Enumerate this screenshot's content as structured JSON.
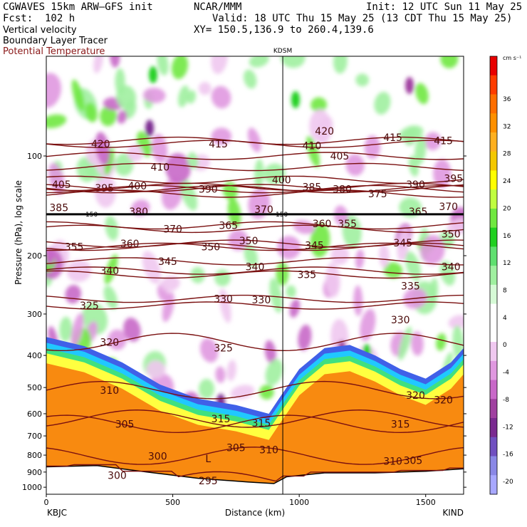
{
  "header": {
    "left_line1": "CGWAVES 15km ARW—GFS init",
    "left_line2": "Fcst:  102 h",
    "left_line3": "Vertical velocity",
    "left_line4": "Boundary Layer Tracer",
    "left_line5": "Potential Temperature",
    "center_line1": "NCAR/MMM",
    "init_text": "Init: 12 UTC Sun 11 May 25",
    "valid_text": "Valid: 18 UTC Thu 15 May 25 (13 CDT Thu 15 May 25)",
    "xy_text": "XY= 150.5,136.9 to 260.4,139.6",
    "potential_temp_color": "#8b1a1a"
  },
  "chart_data": {
    "type": "heatmap",
    "xlabel": "Distance (km)",
    "ylabel": "Pressure (hPa), log scale",
    "xlim": [
      0,
      1650
    ],
    "ylim": [
      1050,
      50
    ],
    "x_ticks": [
      0,
      500,
      1000,
      1500
    ],
    "x_tick_labels": [
      "0",
      "500",
      "1000",
      "1500"
    ],
    "y_ticks": [
      100,
      200,
      300,
      400,
      500,
      600,
      700,
      800,
      900,
      1000
    ],
    "y_tick_labels": [
      "100",
      "200",
      "300",
      "400",
      "500",
      "600",
      "700",
      "800",
      "900",
      "1000"
    ],
    "y_scale": "log",
    "start_station": "KBJC",
    "end_station": "KIND",
    "mid_station": "KDSM",
    "mid_station_km": 935,
    "tropopause_pressure": 150,
    "tropopause_labels": [
      "150",
      "150"
    ],
    "colorbar": {
      "units": "cm s⁻¹",
      "levels": [
        36,
        32,
        28,
        24,
        20,
        16,
        12,
        8,
        4,
        0,
        -4,
        -8,
        -12,
        -16,
        -20
      ],
      "labels": [
        "36",
        "32",
        "28",
        "24",
        "20",
        "16",
        "12",
        "8",
        "4",
        "0",
        "-4",
        "-8",
        "-12",
        "-16",
        "-20"
      ],
      "colors": [
        "#e80000",
        "#ff3c00",
        "#ff6e00",
        "#ff9000",
        "#ffb020",
        "#f4c800",
        "#ffff00",
        "#c0ff40",
        "#70e840",
        "#20d020",
        "#60e070",
        "#a0f0a0",
        "#d6fad6",
        "#ffffff",
        "#ffffff",
        "#f0c8f0",
        "#e098e0",
        "#c868c8",
        "#a040a0",
        "#7a2a90",
        "#7050c0",
        "#8a88e6",
        "#a8a8ff"
      ]
    },
    "theta_contours": [
      {
        "value": 420,
        "label": "420",
        "label_x": 215,
        "label_p": 92
      },
      {
        "value": 415,
        "label": "415",
        "label_x": 1570,
        "label_p": 90
      },
      {
        "value": 410,
        "label": "410",
        "label_x": 450,
        "label_p": 108
      },
      {
        "value": 405,
        "label": "405",
        "label_x": 1160,
        "label_p": 100
      },
      {
        "value": 400,
        "label": "400",
        "label_x": 930,
        "label_p": 118
      },
      {
        "value": 395,
        "label": "395",
        "label_x": 230,
        "label_p": 125
      },
      {
        "value": 390,
        "label": "390",
        "label_x": 640,
        "label_p": 126
      },
      {
        "value": 385,
        "label": "385",
        "label_x": 1050,
        "label_p": 124
      },
      {
        "value": 380,
        "label": "380",
        "label_x": 1170,
        "label_p": 126
      },
      {
        "value": 375,
        "label": "375",
        "label_x": 1310,
        "label_p": 130
      },
      {
        "value": 370,
        "label": "370",
        "label_x": 500,
        "label_p": 166
      },
      {
        "value": 365,
        "label": "365",
        "label_x": 720,
        "label_p": 162
      },
      {
        "value": 360,
        "label": "360",
        "label_x": 330,
        "label_p": 184
      },
      {
        "value": 355,
        "label": "355",
        "label_x": 110,
        "label_p": 188
      },
      {
        "value": 350,
        "label": "350",
        "label_x": 650,
        "label_p": 188
      },
      {
        "value": 345,
        "label": "345",
        "label_x": 480,
        "label_p": 208
      },
      {
        "value": 340,
        "label": "340",
        "label_x": 250,
        "label_p": 222
      },
      {
        "value": 335,
        "label": "335",
        "label_x": 1030,
        "label_p": 228
      },
      {
        "value": 330,
        "label": "330",
        "label_x": 700,
        "label_p": 270
      },
      {
        "value": 325,
        "label": "325",
        "label_x": 170,
        "label_p": 283
      },
      {
        "value": 320,
        "label": "320",
        "label_x": 250,
        "label_p": 365
      },
      {
        "value": 315,
        "label": "315",
        "label_x": 690,
        "label_p": 622
      },
      {
        "value": 310,
        "label": "310",
        "label_x": 250,
        "label_p": 510
      },
      {
        "value": 305,
        "label": "305",
        "label_x": 310,
        "label_p": 645
      },
      {
        "value": 300,
        "label": "300",
        "label_x": 440,
        "label_p": 805
      },
      {
        "value": 295,
        "label": "295",
        "label_x": 640,
        "label_p": 955
      }
    ],
    "extra_theta_labels": [
      {
        "label": "415",
        "x": 680,
        "p": 92
      },
      {
        "label": "410",
        "x": 1050,
        "p": 93
      },
      {
        "label": "420",
        "x": 1100,
        "p": 84
      },
      {
        "label": "415",
        "x": 1370,
        "p": 88
      },
      {
        "label": "405",
        "x": 60,
        "p": 122
      },
      {
        "label": "390",
        "x": 1460,
        "p": 122
      },
      {
        "label": "395",
        "x": 1610,
        "p": 117
      },
      {
        "label": "400",
        "x": 360,
        "p": 123
      },
      {
        "label": "385",
        "x": 50,
        "p": 143
      },
      {
        "label": "380",
        "x": 365,
        "p": 147
      },
      {
        "label": "370",
        "x": 860,
        "p": 145
      },
      {
        "label": "370",
        "x": 1590,
        "p": 142
      },
      {
        "label": "365",
        "x": 1470,
        "p": 147
      },
      {
        "label": "360",
        "x": 1090,
        "p": 160
      },
      {
        "label": "355",
        "x": 1190,
        "p": 160
      },
      {
        "label": "350",
        "x": 800,
        "p": 180
      },
      {
        "label": "345",
        "x": 1060,
        "p": 186
      },
      {
        "label": "345",
        "x": 1410,
        "p": 183
      },
      {
        "label": "350",
        "x": 1600,
        "p": 172
      },
      {
        "label": "340",
        "x": 825,
        "p": 216
      },
      {
        "label": "340",
        "x": 1600,
        "p": 216
      },
      {
        "label": "335",
        "x": 1440,
        "p": 247
      },
      {
        "label": "330",
        "x": 850,
        "p": 272
      },
      {
        "label": "330",
        "x": 1400,
        "p": 312
      },
      {
        "label": "325",
        "x": 700,
        "p": 380
      },
      {
        "label": "320",
        "x": 1460,
        "p": 528
      },
      {
        "label": "320",
        "x": 1570,
        "p": 545
      },
      {
        "label": "315",
        "x": 850,
        "p": 640
      },
      {
        "label": "315",
        "x": 1400,
        "p": 645
      },
      {
        "label": "305",
        "x": 750,
        "p": 760
      },
      {
        "label": "310",
        "x": 880,
        "p": 770
      },
      {
        "label": "310",
        "x": 1370,
        "p": 835
      },
      {
        "label": "305",
        "x": 1450,
        "p": 830
      },
      {
        "label": "300",
        "x": 280,
        "p": 920
      }
    ],
    "low_marker": {
      "label": "L",
      "x": 640,
      "p": 820
    }
  }
}
